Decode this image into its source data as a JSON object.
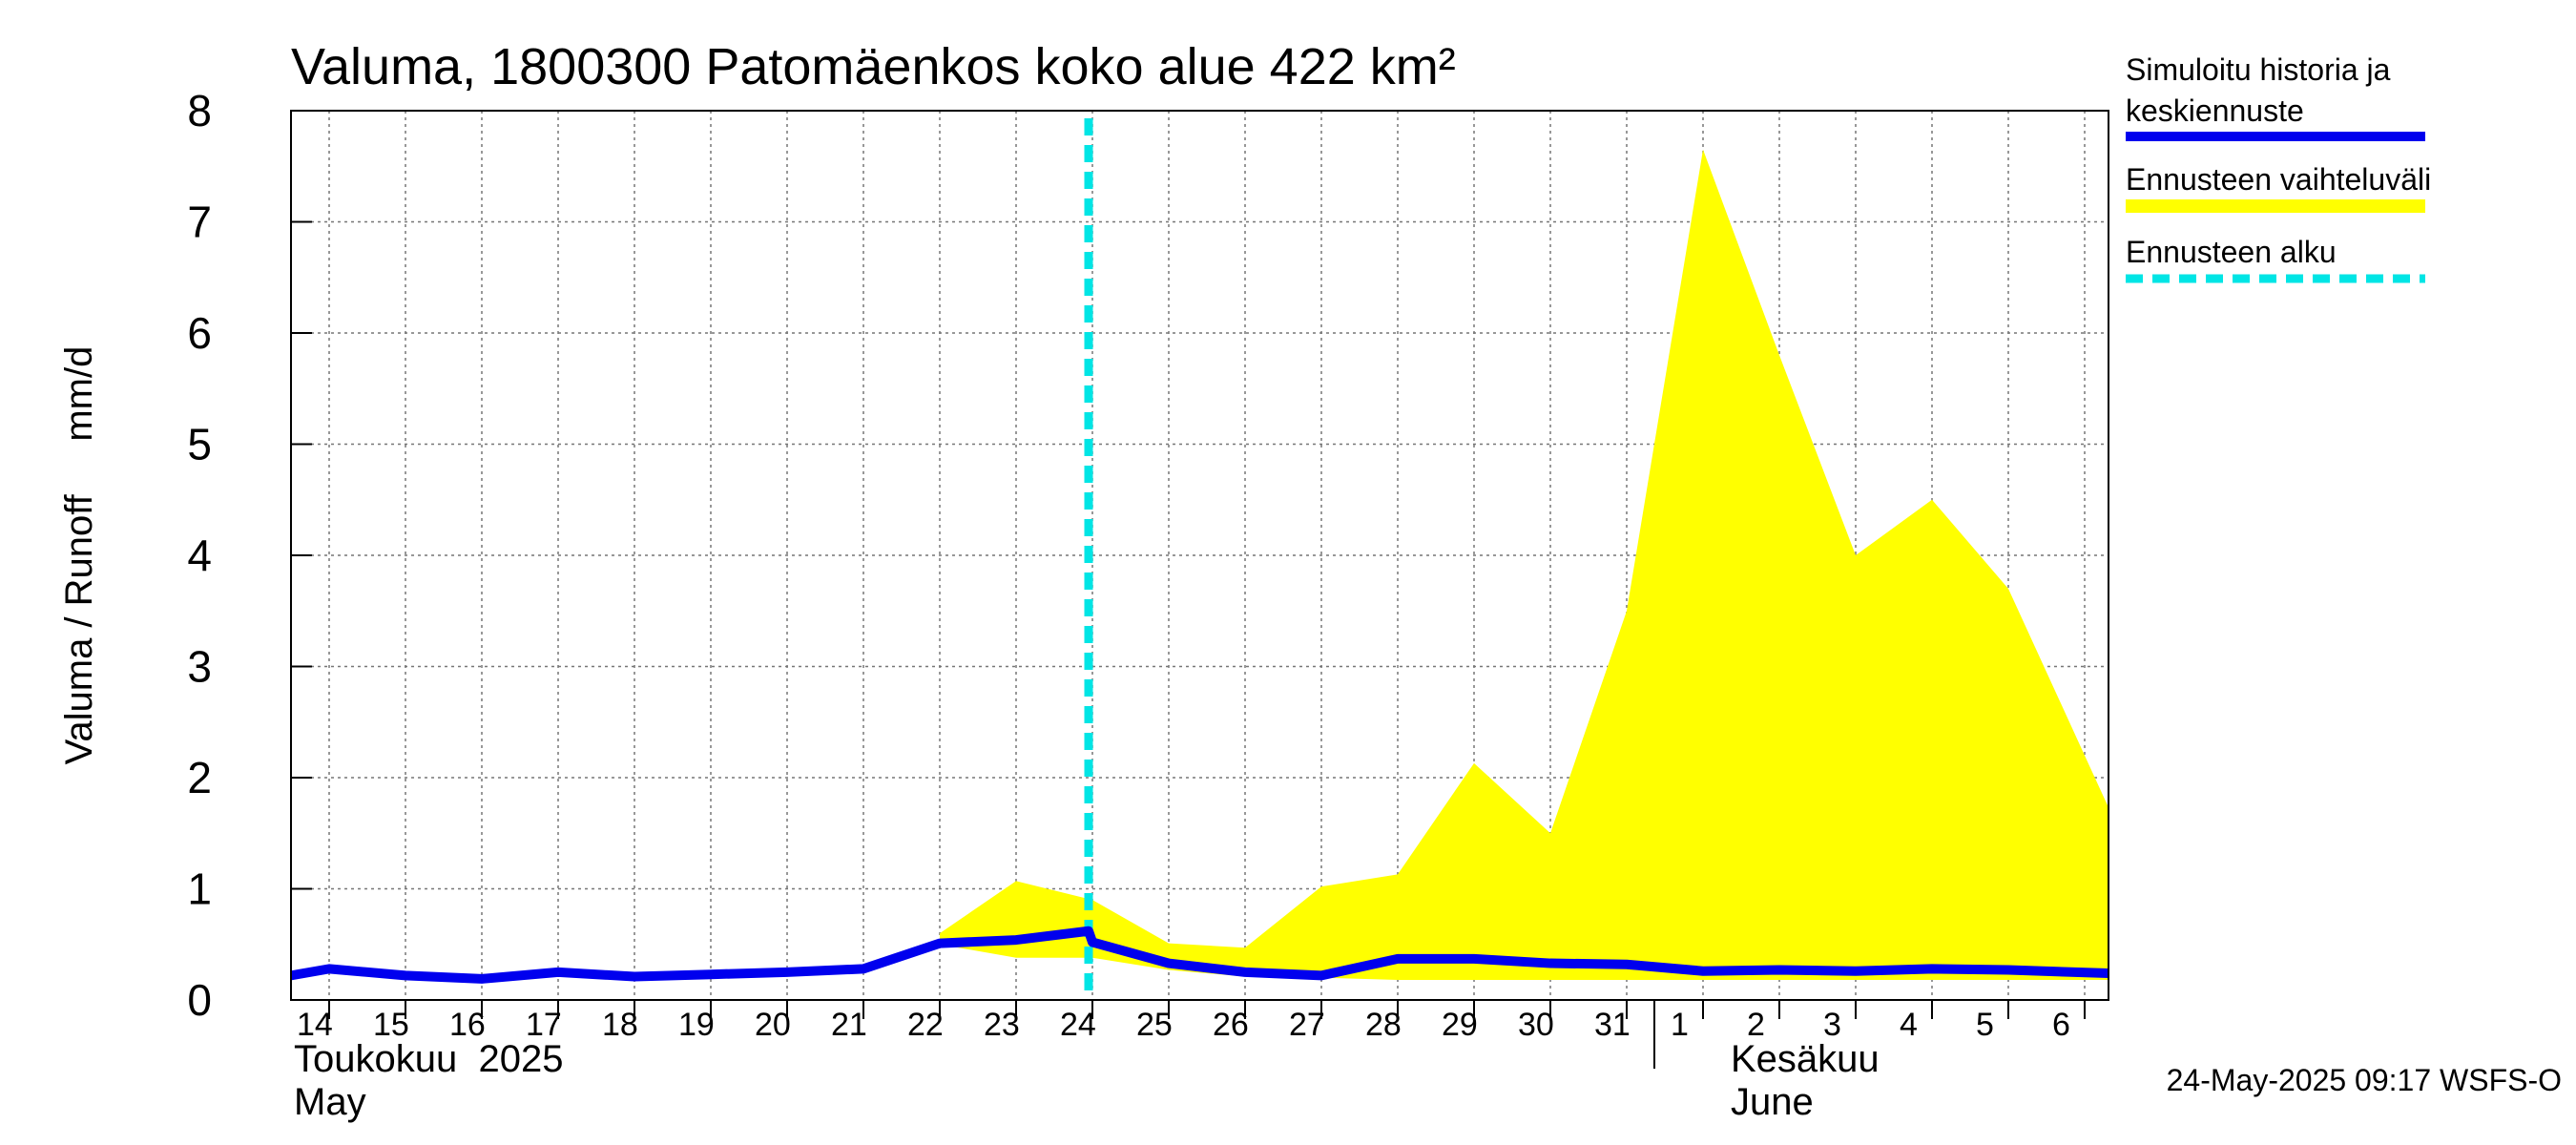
{
  "chart_data": {
    "type": "area",
    "title": "Valuma, 1800300 Patomäenkos koko alue 422 km²",
    "ylabel": "Valuma / Runoff     mm/d",
    "ylim": [
      0,
      8
    ],
    "yticks": [
      "0",
      "1",
      "2",
      "3",
      "4",
      "5",
      "6",
      "7",
      "8"
    ],
    "xlim": [
      "2025-05-14",
      "2025-06-06"
    ],
    "x_tick_labels": [
      "14",
      "15",
      "16",
      "17",
      "18",
      "19",
      "20",
      "21",
      "22",
      "23",
      "24",
      "25",
      "26",
      "27",
      "28",
      "29",
      "30",
      "31",
      "1",
      "2",
      "3",
      "4",
      "5",
      "6"
    ],
    "months": [
      {
        "fi": "Toukokuu  2025",
        "en": "May"
      },
      {
        "fi": "Kesäkuu",
        "en": "June"
      }
    ],
    "grid": true,
    "legend_position": "right",
    "forecast_start": "2025-05-23",
    "series": [
      {
        "name": "Simuloitu historia ja keskiennuste",
        "color": "#0000ee",
        "x": [
          "2025-05-13",
          "2025-05-14",
          "2025-05-15",
          "2025-05-16",
          "2025-05-17",
          "2025-05-18",
          "2025-05-19",
          "2025-05-20",
          "2025-05-21",
          "2025-05-22",
          "2025-05-23",
          "2025-05-23",
          "2025-05-24",
          "2025-05-25",
          "2025-05-26",
          "2025-05-27",
          "2025-05-28",
          "2025-05-29",
          "2025-05-30",
          "2025-05-31",
          "2025-06-01",
          "2025-06-02",
          "2025-06-03",
          "2025-06-04",
          "2025-06-05",
          "2025-06-06"
        ],
        "y": [
          0.22,
          0.28,
          0.22,
          0.19,
          0.25,
          0.21,
          0.23,
          0.25,
          0.28,
          0.51,
          0.54,
          0.62,
          0.52,
          0.33,
          0.25,
          0.22,
          0.37,
          0.37,
          0.33,
          0.32,
          0.26,
          0.27,
          0.26,
          0.28,
          0.27,
          0.24
        ]
      },
      {
        "name": "Ennusteen vaihteluväli",
        "color": "#ffff00",
        "x": [
          "2025-05-22",
          "2025-05-23",
          "2025-05-24",
          "2025-05-25",
          "2025-05-26",
          "2025-05-27",
          "2025-05-28",
          "2025-05-29",
          "2025-05-30",
          "2025-05-31",
          "2025-06-01",
          "2025-06-02",
          "2025-06-03",
          "2025-06-04",
          "2025-06-05",
          "2025-06-06"
        ],
        "lower": [
          0.5,
          0.38,
          0.38,
          0.27,
          0.21,
          0.2,
          0.18,
          0.18,
          0.18,
          0.18,
          0.18,
          0.18,
          0.18,
          0.18,
          0.18,
          0.18
        ],
        "upper": [
          0.6,
          1.07,
          0.9,
          0.51,
          0.47,
          1.02,
          1.13,
          2.13,
          1.5,
          3.5,
          7.65,
          5.8,
          4.0,
          4.5,
          3.7,
          2.2
        ]
      },
      {
        "name": "Ennusteen alku",
        "color": "#00e5e5"
      }
    ]
  },
  "footer": "24-May-2025 09:17 WSFS-O"
}
